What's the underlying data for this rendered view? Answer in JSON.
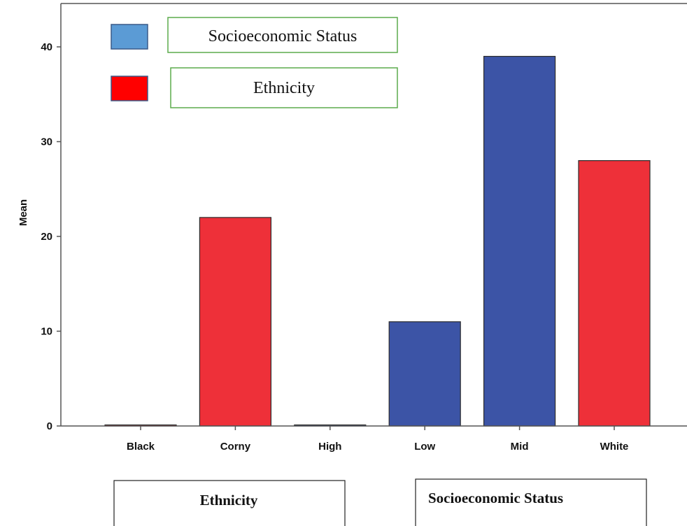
{
  "chart_data": {
    "type": "bar",
    "title": "",
    "xlabel": "",
    "ylabel": "Mean",
    "ylim": [
      0,
      44
    ],
    "y_ticks": [
      0,
      10,
      20,
      30,
      40
    ],
    "categories": [
      "Black",
      "Corny",
      "High",
      "Low",
      "Mid",
      "White"
    ],
    "values": [
      0,
      22,
      0,
      11,
      39,
      28
    ],
    "bar_colors": [
      "#ee3039",
      "#ee3039",
      "#3c54a6",
      "#3c54a6",
      "#3c54a6",
      "#ee3039"
    ],
    "grid": false,
    "legend": {
      "placement": "top-left",
      "entries": [
        {
          "label": "Socioeconomic Status",
          "color": "#5b9bd5"
        },
        {
          "label": "Ethnicity",
          "color": "#ff0000"
        }
      ]
    },
    "group_labels": [
      {
        "label": "Ethnicity"
      },
      {
        "label": "Socioeconomic Status"
      }
    ]
  }
}
